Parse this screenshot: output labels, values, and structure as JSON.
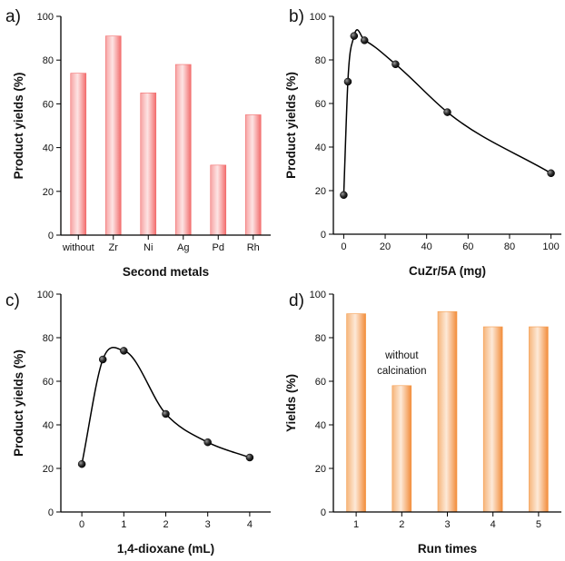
{
  "chart_data": [
    {
      "panel": "a)",
      "type": "bar",
      "categories": [
        "without",
        "Zr",
        "Ni",
        "Ag",
        "Pd",
        "Rh"
      ],
      "values": [
        74,
        91,
        65,
        78,
        32,
        55
      ],
      "xlabel": "Second metals",
      "ylabel": "Product yields (%)",
      "ylim": [
        0,
        100
      ],
      "yticks": [
        "0",
        "20",
        "40",
        "60",
        "80",
        "100"
      ],
      "color": "#f26d6d",
      "grid": false
    },
    {
      "panel": "b)",
      "type": "line",
      "x": [
        0,
        2,
        5,
        10,
        25,
        50,
        100
      ],
      "y": [
        18,
        70,
        91,
        89,
        78,
        56,
        28
      ],
      "xlabel": "CuZr/5A (mg)",
      "ylabel": "Product yields (%)",
      "xlim": [
        -5,
        105
      ],
      "ylim": [
        0,
        100
      ],
      "xticks": [
        "0",
        "20",
        "40",
        "60",
        "80",
        "100"
      ],
      "yticks": [
        "0",
        "20",
        "40",
        "60",
        "80",
        "100"
      ],
      "smooth": true,
      "grid": false
    },
    {
      "panel": "c)",
      "type": "line",
      "x": [
        0,
        0.5,
        1,
        2,
        3,
        4
      ],
      "y": [
        22,
        70,
        74,
        45,
        32,
        25
      ],
      "xlabel": "1,4-dioxane (mL)",
      "ylabel": "Product yields (%)",
      "xlim": [
        -0.5,
        4.5
      ],
      "ylim": [
        0,
        100
      ],
      "xticks": [
        "0",
        "1",
        "2",
        "3",
        "4"
      ],
      "yticks": [
        "0",
        "20",
        "40",
        "60",
        "80",
        "100"
      ],
      "smooth": true,
      "grid": false
    },
    {
      "panel": "d)",
      "type": "bar",
      "categories": [
        "1",
        "2",
        "3",
        "4",
        "5"
      ],
      "values": [
        91,
        58,
        92,
        85,
        85
      ],
      "xlabel": "Run times",
      "ylabel": "Yields (%)",
      "ylim": [
        0,
        100
      ],
      "yticks": [
        "0",
        "20",
        "40",
        "60",
        "80",
        "100"
      ],
      "annotations": [
        {
          "text": "without",
          "category": "2",
          "y": 72
        },
        {
          "text": "calcination",
          "category": "2",
          "y": 65
        }
      ],
      "color": "#f59b4c",
      "grid": false
    }
  ]
}
